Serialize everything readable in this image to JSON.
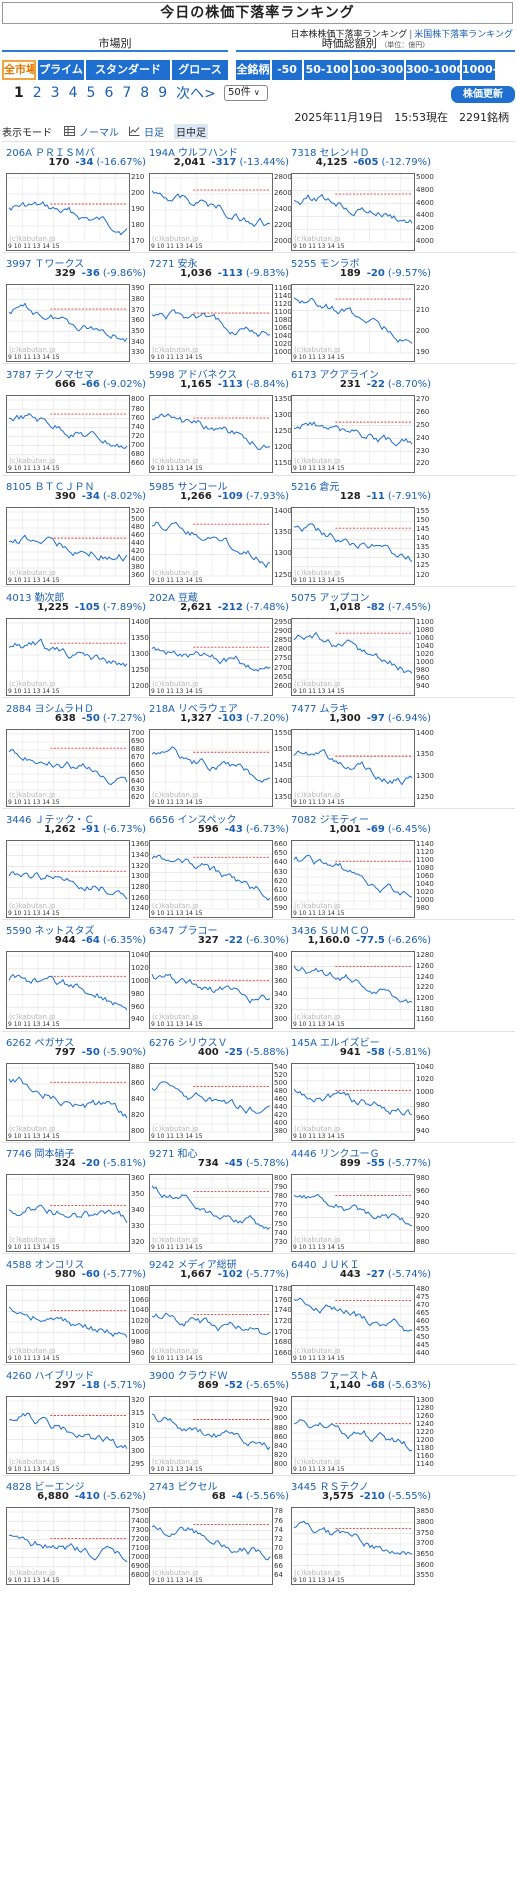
{
  "header": {
    "title": "今日の株価下落率ランキング",
    "link_jp": "日本株株価下落率ランキング",
    "link_sep": "|",
    "link_us": "米国株下落率ランキング"
  },
  "filters": {
    "market_heading": "市場別",
    "price_heading": "時価総額別",
    "price_unit": "（単位：億円）",
    "market_tabs": [
      "全市場",
      "プライム",
      "スタンダード",
      "グロース"
    ],
    "price_tabs": [
      "全銘柄",
      "-50",
      "50-100",
      "100-300",
      "300-1000",
      "1000-"
    ]
  },
  "pager": {
    "pages": [
      "1",
      "2",
      "3",
      "4",
      "5",
      "6",
      "7",
      "8",
      "9"
    ],
    "next": "次へ>",
    "last": "»",
    "per_page": "50件",
    "update_button": "株価更新"
  },
  "timestamp": "2025年11月19日　15:53現在　2291銘柄",
  "display_mode": {
    "label": "表示モード",
    "normal": "ノーマル",
    "daily": "日足",
    "intraday": "日中足"
  },
  "chart_watermark": "(c)kabutan.jp",
  "chart_xlabels": "9   10 11  13 14 15",
  "colors": {
    "accent": "#1f6fd1",
    "down": "#1a5fb4",
    "prev_close_line": "#e53935",
    "selected_tab": "#f2a33a"
  },
  "stocks": [
    {
      "code": "206A",
      "name": "ＰＲＩＳＭバ",
      "price": "170",
      "change": "-34",
      "pct": "(-16.67%)",
      "yticks": [
        "210",
        "200",
        "190",
        "180",
        "170"
      ]
    },
    {
      "code": "194A",
      "name": "ウルフハンド",
      "price": "2,041",
      "change": "-317",
      "pct": "(-13.44%)",
      "yticks": [
        "2800",
        "2600",
        "2400",
        "2200",
        "2000"
      ]
    },
    {
      "code": "7318",
      "name": "セレンＨＤ",
      "price": "4,125",
      "change": "-605",
      "pct": "(-12.79%)",
      "yticks": [
        "5000",
        "4800",
        "4600",
        "4400",
        "4200",
        "4000"
      ]
    },
    {
      "code": "3997",
      "name": "Ｔワークス",
      "price": "329",
      "change": "-36",
      "pct": "(-9.86%)",
      "yticks": [
        "390",
        "380",
        "370",
        "360",
        "350",
        "340",
        "330"
      ]
    },
    {
      "code": "7271",
      "name": "安永",
      "price": "1,036",
      "change": "-113",
      "pct": "(-9.83%)",
      "yticks": [
        "1160",
        "1140",
        "1120",
        "1100",
        "1080",
        "1060",
        "1040",
        "1020",
        "1000"
      ]
    },
    {
      "code": "5255",
      "name": "モンラボ",
      "price": "189",
      "change": "-20",
      "pct": "(-9.57%)",
      "yticks": [
        "220",
        "210",
        "200",
        "190"
      ]
    },
    {
      "code": "3787",
      "name": "テクノマセマ",
      "price": "666",
      "change": "-66",
      "pct": "(-9.02%)",
      "yticks": [
        "800",
        "780",
        "760",
        "740",
        "720",
        "700",
        "680",
        "660"
      ]
    },
    {
      "code": "5998",
      "name": "アドバネクス",
      "price": "1,165",
      "change": "-113",
      "pct": "(-8.84%)",
      "yticks": [
        "1350",
        "1300",
        "1250",
        "1200",
        "1150"
      ]
    },
    {
      "code": "6173",
      "name": "アクアライン",
      "price": "231",
      "change": "-22",
      "pct": "(-8.70%)",
      "yticks": [
        "270",
        "260",
        "250",
        "240",
        "230",
        "220"
      ]
    },
    {
      "code": "8105",
      "name": "ＢＴＣＪＰＮ",
      "price": "390",
      "change": "-34",
      "pct": "(-8.02%)",
      "yticks": [
        "520",
        "500",
        "480",
        "460",
        "440",
        "420",
        "400",
        "380",
        "360"
      ]
    },
    {
      "code": "5985",
      "name": "サンコール",
      "price": "1,266",
      "change": "-109",
      "pct": "(-7.93%)",
      "yticks": [
        "1400",
        "1350",
        "1300",
        "1250"
      ]
    },
    {
      "code": "5216",
      "name": "倉元",
      "price": "128",
      "change": "-11",
      "pct": "(-7.91%)",
      "yticks": [
        "155",
        "150",
        "145",
        "140",
        "135",
        "130",
        "125",
        "120"
      ]
    },
    {
      "code": "4013",
      "name": "勤次郎",
      "price": "1,225",
      "change": "-105",
      "pct": "(-7.89%)",
      "yticks": [
        "1400",
        "1350",
        "1300",
        "1250",
        "1200"
      ]
    },
    {
      "code": "202A",
      "name": "豆蔵",
      "price": "2,621",
      "change": "-212",
      "pct": "(-7.48%)",
      "yticks": [
        "2950",
        "2900",
        "2850",
        "2800",
        "2750",
        "2700",
        "2650",
        "2600"
      ]
    },
    {
      "code": "5075",
      "name": "アップコン",
      "price": "1,018",
      "change": "-82",
      "pct": "(-7.45%)",
      "yticks": [
        "1100",
        "1080",
        "1060",
        "1040",
        "1020",
        "1000",
        "980",
        "960",
        "940"
      ]
    },
    {
      "code": "2884",
      "name": "ヨシムラＨＤ",
      "price": "638",
      "change": "-50",
      "pct": "(-7.27%)",
      "yticks": [
        "700",
        "690",
        "680",
        "670",
        "660",
        "650",
        "640",
        "630",
        "620"
      ]
    },
    {
      "code": "218A",
      "name": "リベラウェア",
      "price": "1,327",
      "change": "-103",
      "pct": "(-7.20%)",
      "yticks": [
        "1550",
        "1500",
        "1450",
        "1400",
        "1350"
      ]
    },
    {
      "code": "7477",
      "name": "ムラキ",
      "price": "1,300",
      "change": "-97",
      "pct": "(-6.94%)",
      "yticks": [
        "1400",
        "1350",
        "1300",
        "1250"
      ]
    },
    {
      "code": "3446",
      "name": "Ｊテック・Ｃ",
      "price": "1,262",
      "change": "-91",
      "pct": "(-6.73%)",
      "yticks": [
        "1360",
        "1340",
        "1320",
        "1300",
        "1280",
        "1260",
        "1240"
      ]
    },
    {
      "code": "6656",
      "name": "インスペック",
      "price": "596",
      "change": "-43",
      "pct": "(-6.73%)",
      "yticks": [
        "660",
        "650",
        "640",
        "630",
        "620",
        "610",
        "600",
        "590"
      ]
    },
    {
      "code": "7082",
      "name": "ジモティー",
      "price": "1,001",
      "change": "-69",
      "pct": "(-6.45%)",
      "yticks": [
        "1140",
        "1120",
        "1100",
        "1080",
        "1060",
        "1040",
        "1020",
        "1000",
        "980"
      ]
    },
    {
      "code": "5590",
      "name": "ネットスタズ",
      "price": "944",
      "change": "-64",
      "pct": "(-6.35%)",
      "yticks": [
        "1040",
        "1020",
        "1000",
        "980",
        "960",
        "940"
      ]
    },
    {
      "code": "6347",
      "name": "プラコー",
      "price": "327",
      "change": "-22",
      "pct": "(-6.30%)",
      "yticks": [
        "400",
        "380",
        "360",
        "340",
        "320",
        "300"
      ]
    },
    {
      "code": "3436",
      "name": "ＳＵＭＣＯ",
      "price": "1,160.0",
      "change": "-77.5",
      "pct": "(-6.26%)",
      "yticks": [
        "1280",
        "1260",
        "1240",
        "1220",
        "1200",
        "1180",
        "1160"
      ]
    },
    {
      "code": "6262",
      "name": "ペガサス",
      "price": "797",
      "change": "-50",
      "pct": "(-5.90%)",
      "yticks": [
        "880",
        "860",
        "840",
        "820",
        "800"
      ]
    },
    {
      "code": "6276",
      "name": "シリウスＶ",
      "price": "400",
      "change": "-25",
      "pct": "(-5.88%)",
      "yticks": [
        "540",
        "520",
        "500",
        "480",
        "460",
        "440",
        "420",
        "400",
        "380"
      ]
    },
    {
      "code": "145A",
      "name": "エルイズビー",
      "price": "941",
      "change": "-58",
      "pct": "(-5.81%)",
      "yticks": [
        "1040",
        "1020",
        "1000",
        "980",
        "960",
        "940"
      ]
    },
    {
      "code": "7746",
      "name": "岡本硝子",
      "price": "324",
      "change": "-20",
      "pct": "(-5.81%)",
      "yticks": [
        "360",
        "350",
        "340",
        "330",
        "320"
      ]
    },
    {
      "code": "9271",
      "name": "和心",
      "price": "734",
      "change": "-45",
      "pct": "(-5.78%)",
      "yticks": [
        "800",
        "790",
        "780",
        "770",
        "760",
        "750",
        "740",
        "730"
      ]
    },
    {
      "code": "4446",
      "name": "リンクユーＧ",
      "price": "899",
      "change": "-55",
      "pct": "(-5.77%)",
      "yticks": [
        "980",
        "960",
        "940",
        "920",
        "900",
        "880"
      ]
    },
    {
      "code": "4588",
      "name": "オンコリス",
      "price": "980",
      "change": "-60",
      "pct": "(-5.77%)",
      "yticks": [
        "1080",
        "1060",
        "1040",
        "1020",
        "1000",
        "980",
        "960"
      ]
    },
    {
      "code": "9242",
      "name": "メディア総研",
      "price": "1,667",
      "change": "-102",
      "pct": "(-5.77%)",
      "yticks": [
        "1780",
        "1760",
        "1740",
        "1720",
        "1700",
        "1680",
        "1660"
      ]
    },
    {
      "code": "6440",
      "name": "ＪＵＫＩ",
      "price": "443",
      "change": "-27",
      "pct": "(-5.74%)",
      "yticks": [
        "480",
        "475",
        "470",
        "465",
        "460",
        "455",
        "450",
        "445",
        "440"
      ]
    },
    {
      "code": "4260",
      "name": "ハイブリッド",
      "price": "297",
      "change": "-18",
      "pct": "(-5.71%)",
      "yticks": [
        "320",
        "315",
        "310",
        "305",
        "300",
        "295"
      ]
    },
    {
      "code": "3900",
      "name": "クラウドＷ",
      "price": "869",
      "change": "-52",
      "pct": "(-5.65%)",
      "yticks": [
        "940",
        "920",
        "900",
        "880",
        "860",
        "840",
        "820",
        "800"
      ]
    },
    {
      "code": "5588",
      "name": "ファーストＡ",
      "price": "1,140",
      "change": "-68",
      "pct": "(-5.63%)",
      "yticks": [
        "1300",
        "1280",
        "1260",
        "1240",
        "1220",
        "1200",
        "1180",
        "1160",
        "1140"
      ]
    },
    {
      "code": "4828",
      "name": "ビーエンジ",
      "price": "6,880",
      "change": "-410",
      "pct": "(-5.62%)",
      "yticks": [
        "7500",
        "7400",
        "7300",
        "7200",
        "7100",
        "7000",
        "6900",
        "6800"
      ]
    },
    {
      "code": "2743",
      "name": "ピクセル",
      "price": "68",
      "change": "-4",
      "pct": "(-5.56%)",
      "yticks": [
        "78",
        "76",
        "74",
        "72",
        "70",
        "68",
        "66",
        "64"
      ]
    },
    {
      "code": "3445",
      "name": "ＲＳテクノ",
      "price": "3,575",
      "change": "-210",
      "pct": "(-5.55%)",
      "yticks": [
        "3850",
        "3800",
        "3750",
        "3700",
        "3650",
        "3600",
        "3550"
      ]
    }
  ]
}
